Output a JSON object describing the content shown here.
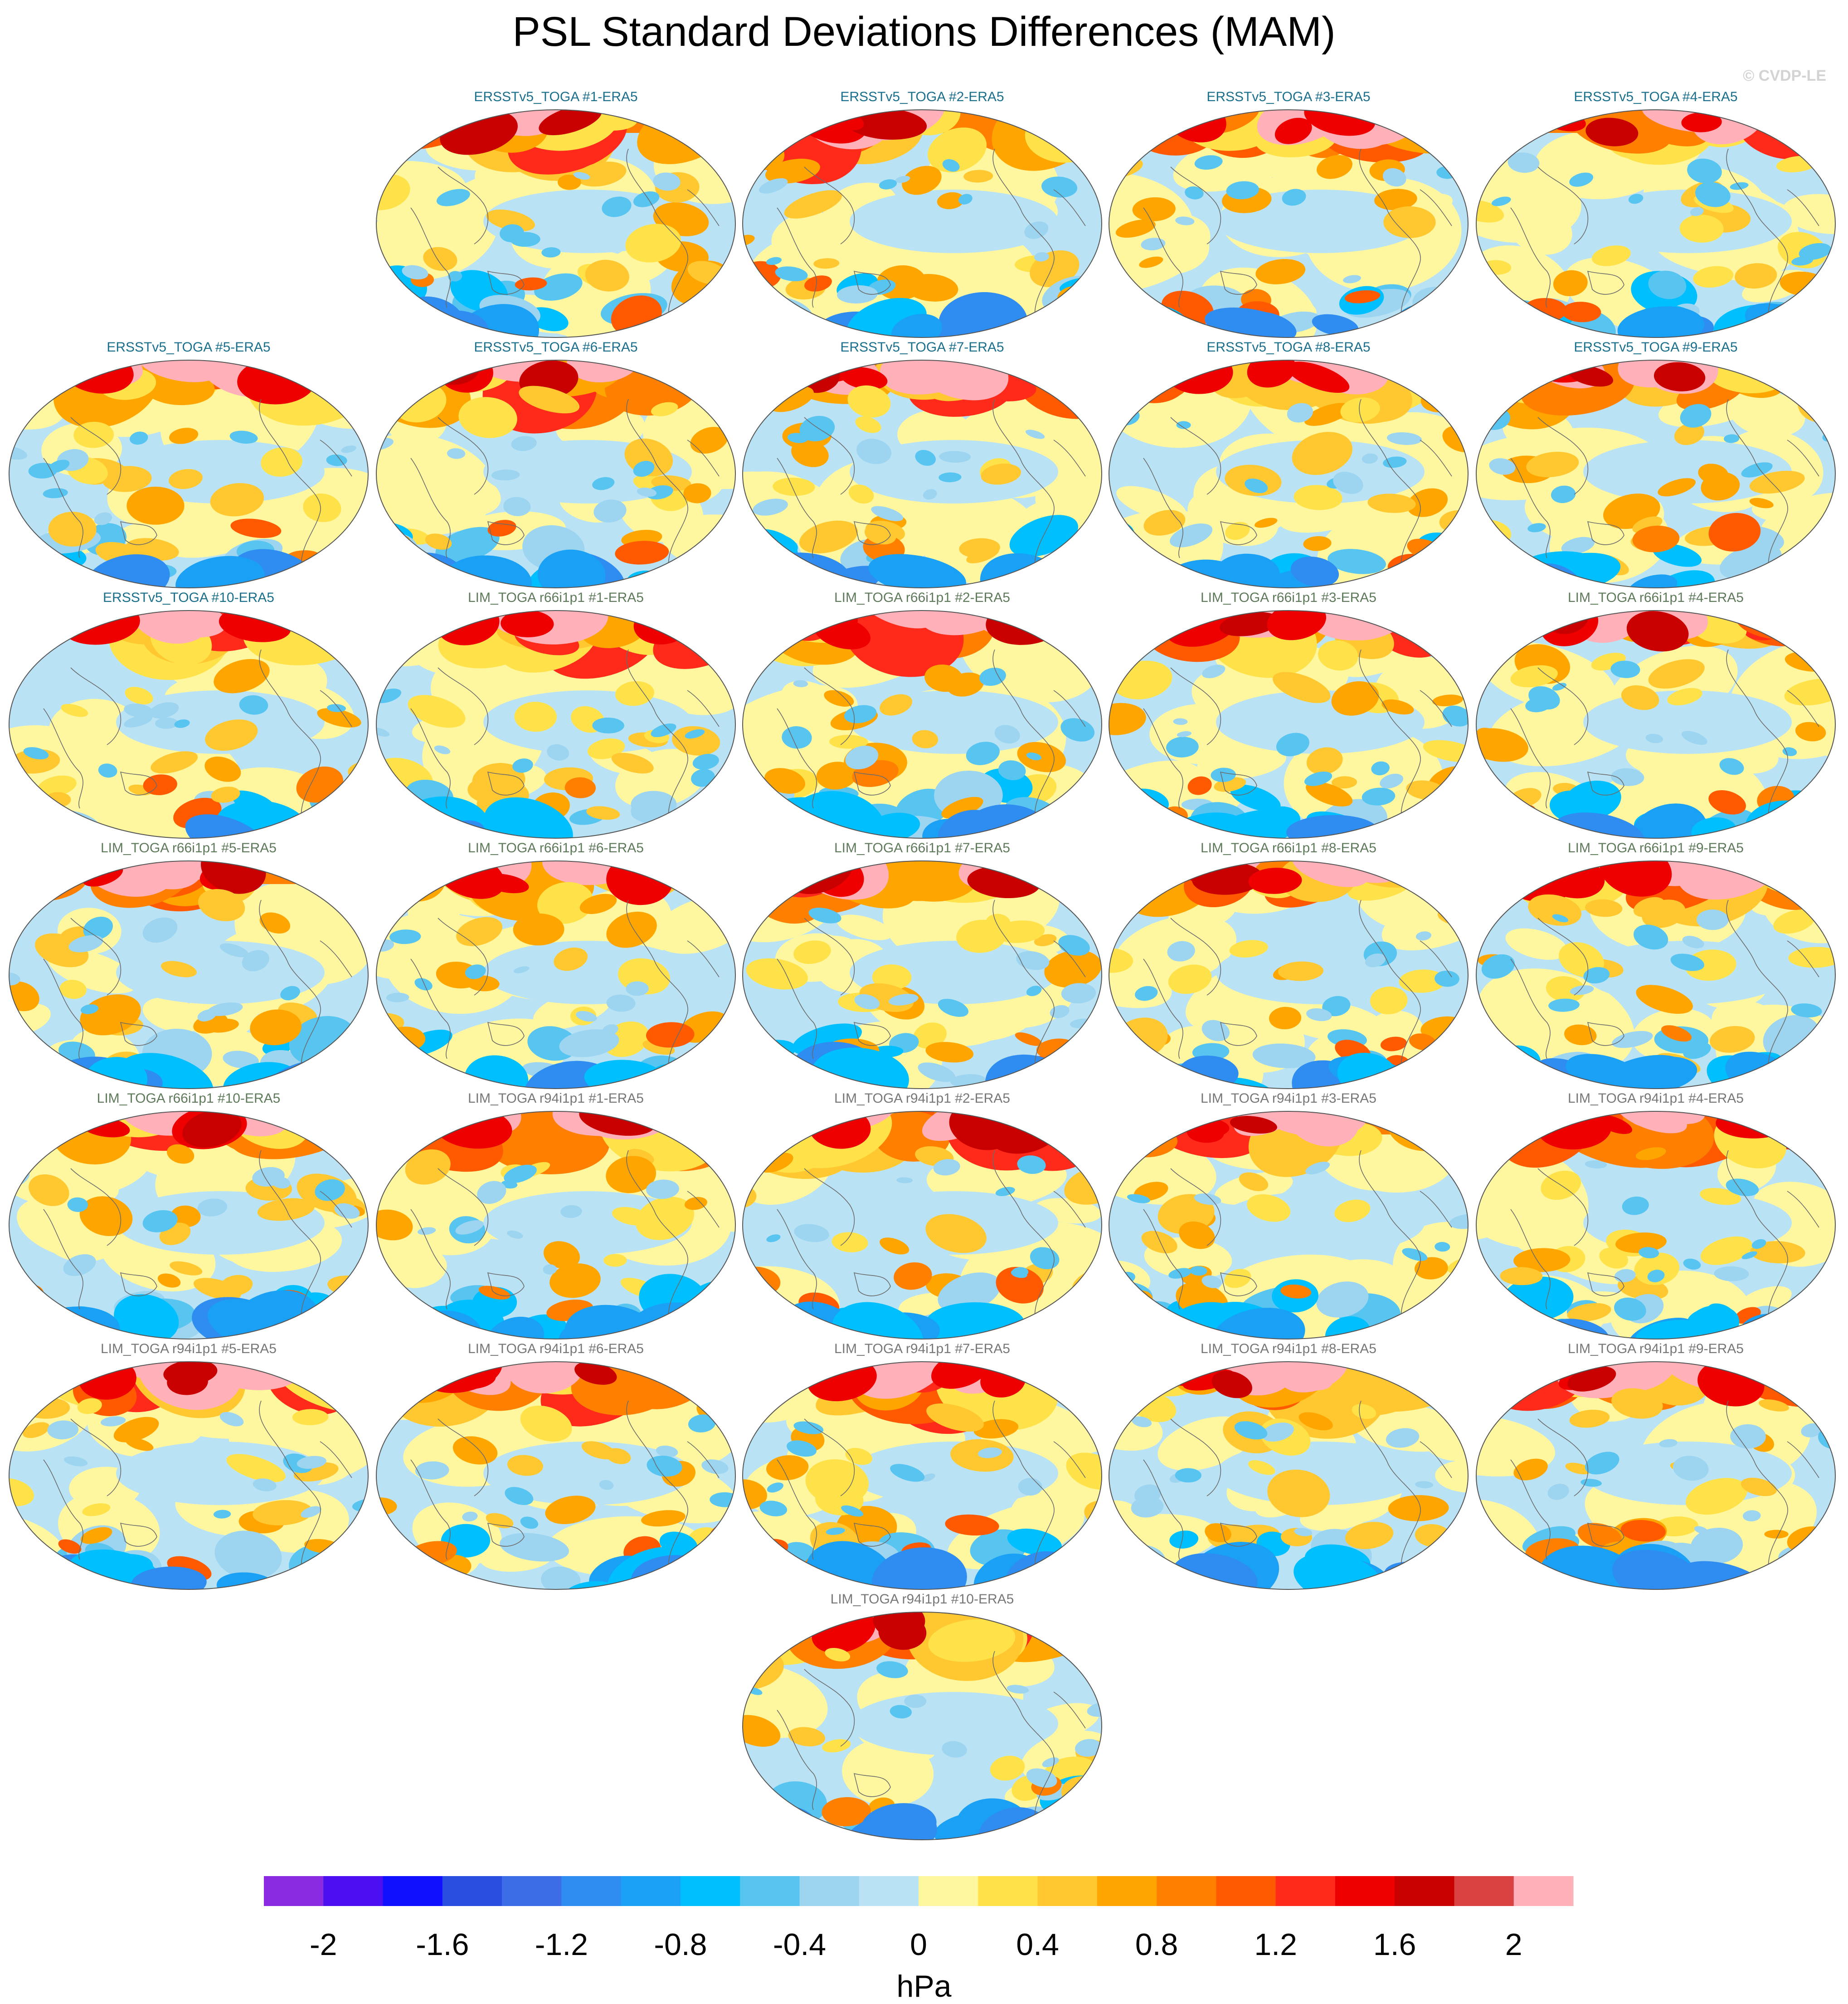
{
  "title": "PSL Standard Deviations Differences (MAM)",
  "credit": "© CVDP-LE",
  "colors": {
    "ersst_title": "#1a6f8c",
    "lim66_title": "#5e7a5a",
    "lim94_title": "#777777"
  },
  "panels": [
    {
      "title": "ERSSTv5_TOGA #1-ERA5",
      "group": "ersst"
    },
    {
      "title": "ERSSTv5_TOGA #2-ERA5",
      "group": "ersst"
    },
    {
      "title": "ERSSTv5_TOGA #3-ERA5",
      "group": "ersst"
    },
    {
      "title": "ERSSTv5_TOGA #4-ERA5",
      "group": "ersst"
    },
    {
      "title": "ERSSTv5_TOGA #5-ERA5",
      "group": "ersst"
    },
    {
      "title": "ERSSTv5_TOGA #6-ERA5",
      "group": "ersst"
    },
    {
      "title": "ERSSTv5_TOGA #7-ERA5",
      "group": "ersst"
    },
    {
      "title": "ERSSTv5_TOGA #8-ERA5",
      "group": "ersst"
    },
    {
      "title": "ERSSTv5_TOGA #9-ERA5",
      "group": "ersst"
    },
    {
      "title": "ERSSTv5_TOGA #10-ERA5",
      "group": "ersst"
    },
    {
      "title": "LIM_TOGA r66i1p1 #1-ERA5",
      "group": "lim66"
    },
    {
      "title": "LIM_TOGA r66i1p1 #2-ERA5",
      "group": "lim66"
    },
    {
      "title": "LIM_TOGA r66i1p1 #3-ERA5",
      "group": "lim66"
    },
    {
      "title": "LIM_TOGA r66i1p1 #4-ERA5",
      "group": "lim66"
    },
    {
      "title": "LIM_TOGA r66i1p1 #5-ERA5",
      "group": "lim66"
    },
    {
      "title": "LIM_TOGA r66i1p1 #6-ERA5",
      "group": "lim66"
    },
    {
      "title": "LIM_TOGA r66i1p1 #7-ERA5",
      "group": "lim66"
    },
    {
      "title": "LIM_TOGA r66i1p1 #8-ERA5",
      "group": "lim66"
    },
    {
      "title": "LIM_TOGA r66i1p1 #9-ERA5",
      "group": "lim66"
    },
    {
      "title": "LIM_TOGA r66i1p1 #10-ERA5",
      "group": "lim66"
    },
    {
      "title": "LIM_TOGA r94i1p1 #1-ERA5",
      "group": "lim94"
    },
    {
      "title": "LIM_TOGA r94i1p1 #2-ERA5",
      "group": "lim94"
    },
    {
      "title": "LIM_TOGA r94i1p1 #3-ERA5",
      "group": "lim94"
    },
    {
      "title": "LIM_TOGA r94i1p1 #4-ERA5",
      "group": "lim94"
    },
    {
      "title": "LIM_TOGA r94i1p1 #5-ERA5",
      "group": "lim94"
    },
    {
      "title": "LIM_TOGA r94i1p1 #6-ERA5",
      "group": "lim94"
    },
    {
      "title": "LIM_TOGA r94i1p1 #7-ERA5",
      "group": "lim94"
    },
    {
      "title": "LIM_TOGA r94i1p1 #8-ERA5",
      "group": "lim94"
    },
    {
      "title": "LIM_TOGA r94i1p1 #9-ERA5",
      "group": "lim94"
    },
    {
      "title": "LIM_TOGA r94i1p1 #10-ERA5",
      "group": "lim94"
    }
  ],
  "colorbar": {
    "colors": [
      "#8a2be2",
      "#4b0ff0",
      "#1010ff",
      "#2a4fe0",
      "#3c6de6",
      "#2f8cf0",
      "#1aa0f5",
      "#00bfff",
      "#58c4f0",
      "#9dd5f0",
      "#b9e2f5",
      "#fff7a0",
      "#ffe24a",
      "#ffc830",
      "#ffa500",
      "#ff8000",
      "#ff5a00",
      "#ff2a1a",
      "#ee0000",
      "#c80000",
      "#d94040",
      "#ffb0b8"
    ],
    "tick_labels": [
      "-2",
      "-1.6",
      "-1.2",
      "-0.8",
      "-0.4",
      "0",
      "0.4",
      "0.8",
      "1.2",
      "1.6",
      "2"
    ],
    "units": "hPa"
  }
}
